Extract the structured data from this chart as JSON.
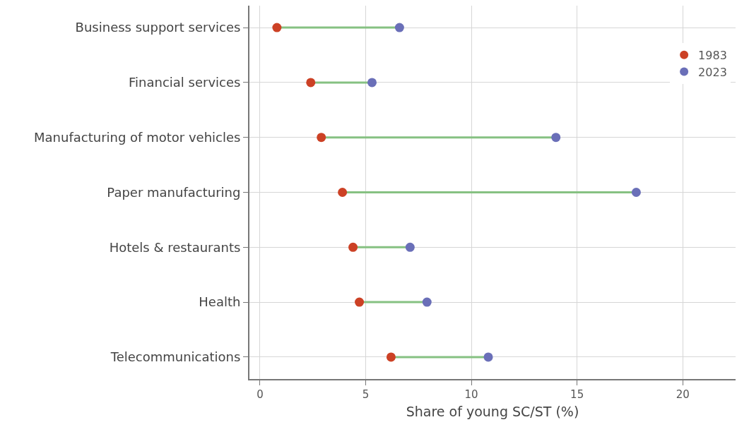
{
  "chart_data": {
    "type": "scatter",
    "orientation": "horizontal",
    "xlabel": "Share of young SC/ST (%)",
    "categories": [
      "Business support services",
      "Financial services",
      "Manufacturing of motor vehicles",
      "Paper manufacturing",
      "Hotels & restaurants",
      "Health",
      "Telecommunications"
    ],
    "series": [
      {
        "name": "1983",
        "color": "#cc4125",
        "values": [
          0.8,
          2.4,
          2.9,
          3.9,
          4.4,
          4.7,
          6.2
        ]
      },
      {
        "name": "2023",
        "color": "#6a6fb8",
        "values": [
          6.6,
          5.3,
          14.0,
          17.8,
          7.1,
          7.9,
          10.8
        ]
      }
    ],
    "xlim": [
      -0.5,
      22.5
    ],
    "xticks": [
      0,
      5,
      10,
      15,
      20
    ],
    "grid": true,
    "legend": "top right",
    "marker": "circle"
  }
}
